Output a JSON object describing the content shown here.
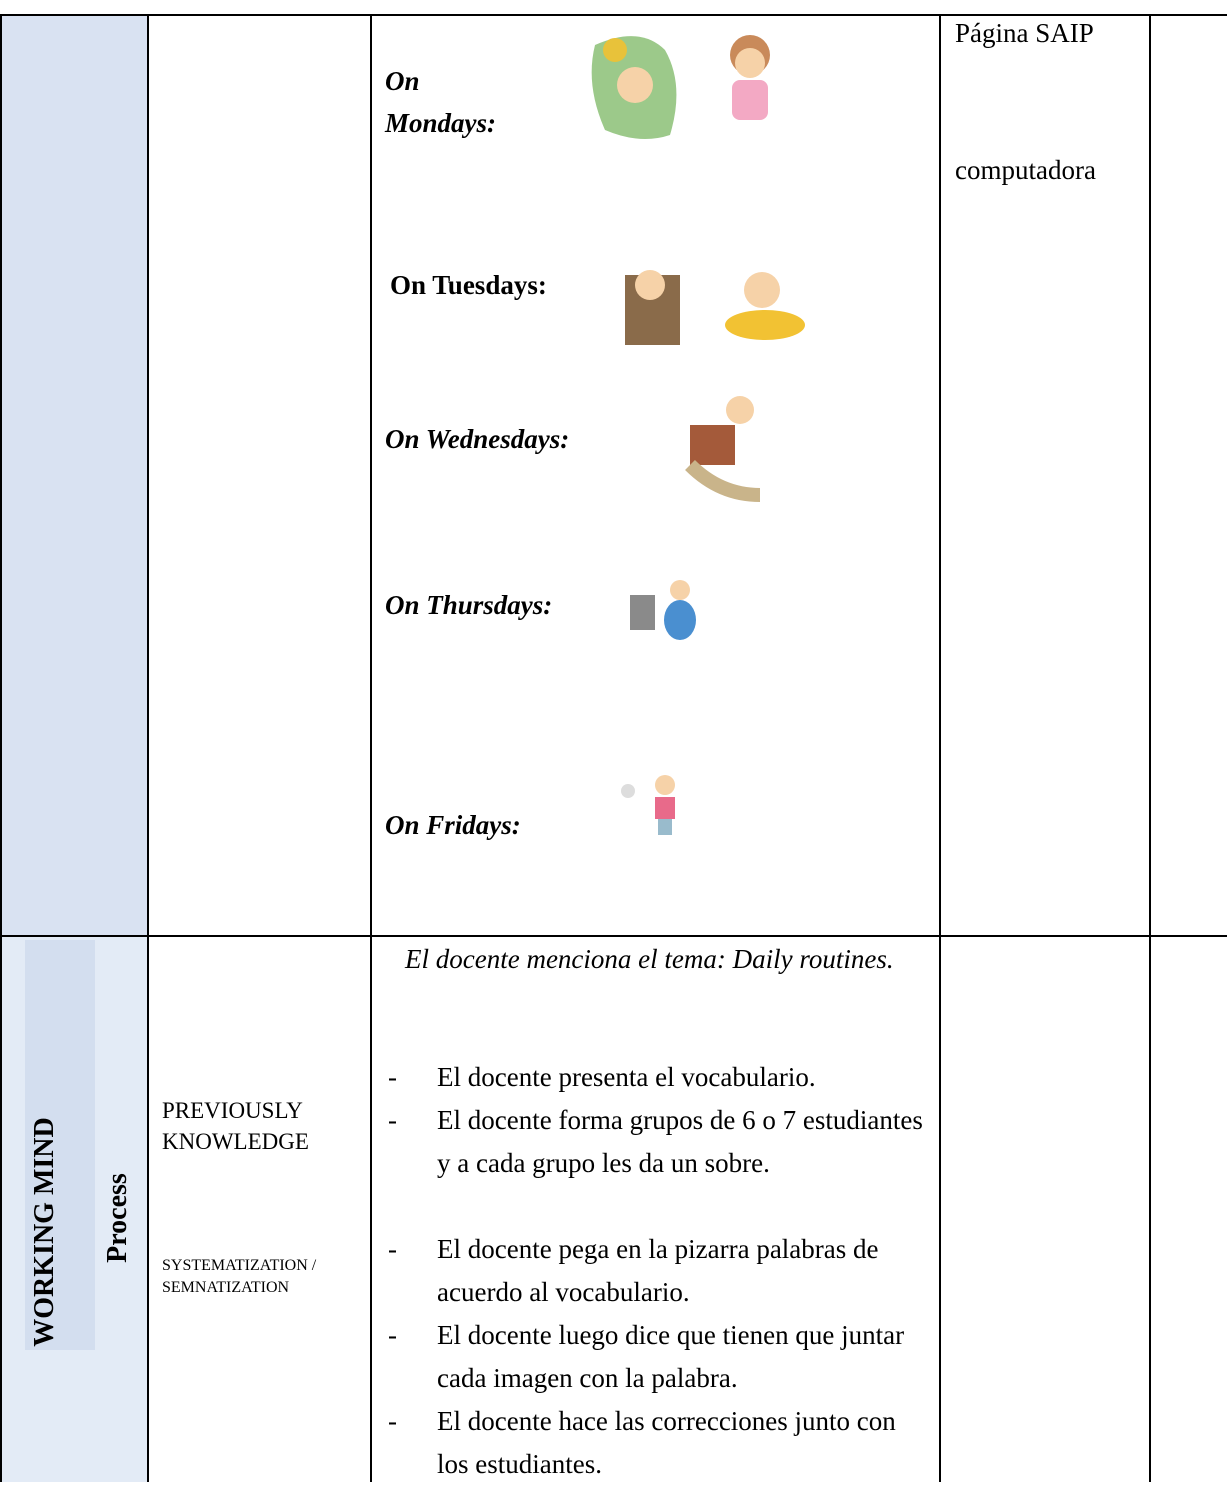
{
  "rows": [
    {
      "days": [
        "On Mondays:",
        "On Tuesdays:",
        "On Wednesdays:",
        "On Thursdays:",
        "On Fridays:"
      ],
      "resources": [
        "Página SAIP",
        "computadora"
      ]
    },
    {
      "stage": "WORKING MIND",
      "phase": "Process",
      "strategies": [
        "PREVIOUSLY KNOWLEDGE",
        "SYSTEMATIZATION / SEMNATIZATION"
      ],
      "intro": "El docente menciona el tema: Daily routines.",
      "steps": [
        "El docente presenta el vocabulario.",
        "El docente forma grupos de 6 o 7 estudiantes y a cada grupo les da un sobre.",
        "El docente pega en la pizarra palabras de acuerdo al vocabulario.",
        "El docente luego dice que tienen que juntar cada imagen con la palabra.",
        "El docente hace las correcciones junto con los estudiantes."
      ]
    }
  ]
}
